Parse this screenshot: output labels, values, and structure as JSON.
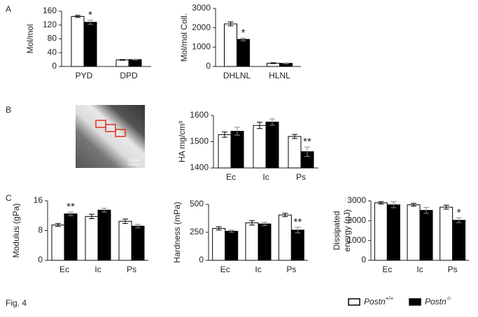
{
  "figure_label": "Fig. 4",
  "panel_labels": [
    "A",
    "B",
    "C"
  ],
  "image": {
    "scale_text": "100um"
  },
  "legend": [
    {
      "name": "Postn",
      "sup": "+/+",
      "color": "#ffffff"
    },
    {
      "name": "Postn",
      "sup": "-/-",
      "color": "#000000"
    }
  ],
  "chart_data": [
    {
      "type": "bar",
      "ylabel": "Mol/mol",
      "categories": [
        "PYD",
        "DPD"
      ],
      "ylim": [
        0,
        160
      ],
      "yticks": [
        0,
        40,
        80,
        120,
        160
      ],
      "series": [
        {
          "color": "#ffffff",
          "values": [
            145,
            19
          ],
          "errors": [
            3,
            1
          ]
        },
        {
          "color": "#000000",
          "values": [
            128,
            20
          ],
          "errors": [
            6,
            1
          ],
          "annotations": [
            "*",
            null
          ]
        }
      ]
    },
    {
      "type": "bar",
      "ylabel": "Mol/mol Coll.",
      "categories": [
        "DHLNL",
        "HLNL"
      ],
      "ylim": [
        0,
        3000
      ],
      "yticks": [
        0,
        1000,
        2000,
        3000
      ],
      "series": [
        {
          "color": "#ffffff",
          "values": [
            2200,
            170
          ],
          "errors": [
            100,
            20
          ]
        },
        {
          "color": "#000000",
          "values": [
            1400,
            160
          ],
          "errors": [
            70,
            20
          ],
          "annotations": [
            "*",
            null
          ]
        }
      ]
    },
    {
      "type": "bar",
      "ylabel": "HA mg/cm³",
      "categories": [
        "Ec",
        "Ic",
        "Ps"
      ],
      "ylim": [
        1400,
        1600
      ],
      "yticks": [
        1400,
        1500,
        1600
      ],
      "series": [
        {
          "color": "#ffffff",
          "values": [
            1527,
            1562,
            1520
          ],
          "errors": [
            10,
            12,
            8
          ]
        },
        {
          "color": "#000000",
          "values": [
            1540,
            1575,
            1462
          ],
          "errors": [
            15,
            12,
            18
          ],
          "annotations": [
            null,
            null,
            "**"
          ]
        }
      ]
    },
    {
      "type": "bar",
      "ylabel": "Modulus (gPa)",
      "categories": [
        "Ec",
        "Ic",
        "Ps"
      ],
      "ylim": [
        0,
        16
      ],
      "yticks": [
        0,
        8,
        16
      ],
      "series": [
        {
          "color": "#ffffff",
          "values": [
            9.5,
            11.8,
            10.5
          ],
          "errors": [
            0.4,
            0.6,
            0.6
          ]
        },
        {
          "color": "#000000",
          "values": [
            12.5,
            13.5,
            9.2
          ],
          "errors": [
            0.5,
            0.5,
            0.5
          ],
          "annotations": [
            "**",
            null,
            null
          ]
        }
      ]
    },
    {
      "type": "bar",
      "ylabel": "Hardness (mPa)",
      "categories": [
        "Ec",
        "Ic",
        "Ps"
      ],
      "ylim": [
        0,
        500
      ],
      "yticks": [
        0,
        250,
        500
      ],
      "series": [
        {
          "color": "#ffffff",
          "values": [
            285,
            335,
            405
          ],
          "errors": [
            15,
            20,
            15
          ]
        },
        {
          "color": "#000000",
          "values": [
            260,
            325,
            270
          ],
          "errors": [
            10,
            15,
            25
          ],
          "annotations": [
            null,
            null,
            "**"
          ]
        }
      ]
    },
    {
      "type": "bar",
      "ylabel": [
        "Dissipated",
        "energy (pJ)"
      ],
      "categories": [
        "Ec",
        "Ic",
        "Ps"
      ],
      "ylim": [
        0,
        3000
      ],
      "yticks": [
        0,
        1000,
        2000,
        3000
      ],
      "series": [
        {
          "color": "#ffffff",
          "values": [
            2900,
            2800,
            2680
          ],
          "errors": [
            60,
            70,
            100
          ]
        },
        {
          "color": "#000000",
          "values": [
            2800,
            2520,
            2020
          ],
          "errors": [
            150,
            150,
            120
          ],
          "annotations": [
            null,
            null,
            "*"
          ]
        }
      ]
    }
  ]
}
